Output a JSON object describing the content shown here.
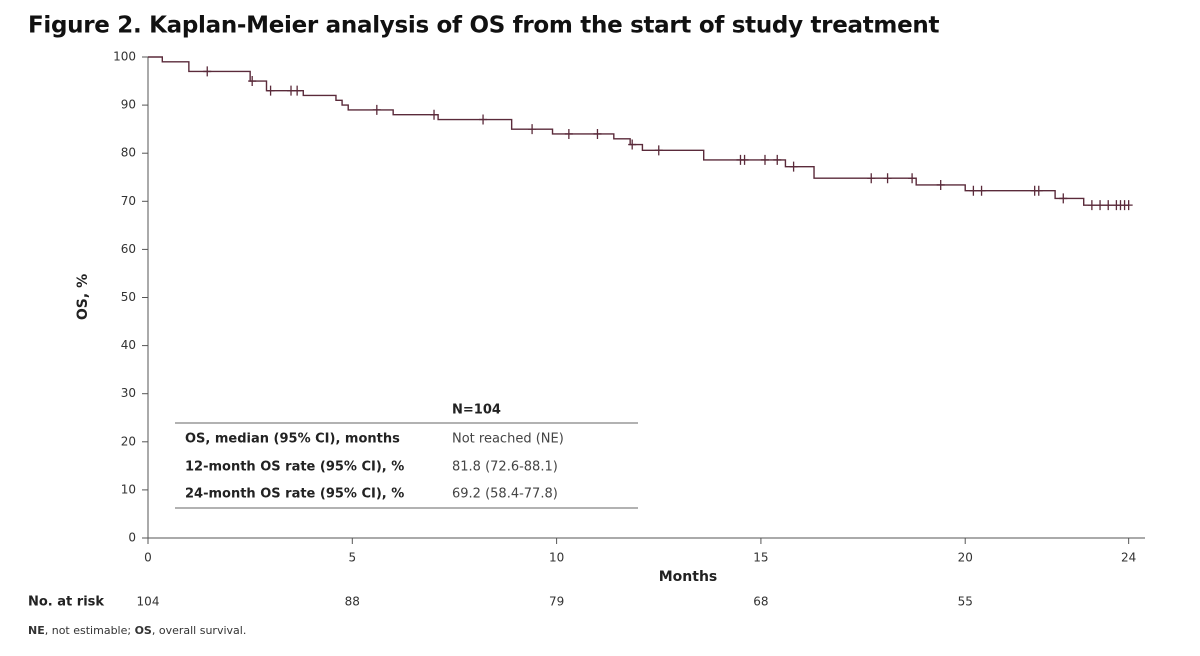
{
  "chart_data": {
    "type": "step",
    "title": "Figure 2. Kaplan-Meier analysis of OS from the start of study treatment",
    "x_label": "Months",
    "y_label": "OS, %",
    "xlim": [
      0,
      24.4
    ],
    "ylim": [
      0,
      100
    ],
    "xticks": [
      0,
      5,
      10,
      15,
      20,
      24
    ],
    "yticks": [
      0,
      10,
      20,
      30,
      40,
      50,
      60,
      70,
      80,
      90,
      100
    ],
    "color": "#5a2a3a",
    "series": [
      {
        "x": [
          0,
          0.35,
          1.0,
          2.5,
          2.9,
          3.8,
          4.6,
          4.75,
          4.9,
          6.0,
          7.1,
          8.9,
          9.9,
          11.4,
          11.8,
          12.1,
          13.6,
          15.6,
          16.3,
          18.8,
          20.0,
          22.2,
          22.9,
          24.0
        ],
        "values": [
          100,
          99,
          97,
          95,
          93,
          92,
          91,
          90,
          89,
          88,
          87,
          85,
          84,
          83,
          81.8,
          80.6,
          78.6,
          77.2,
          74.8,
          73.4,
          72.2,
          70.6,
          69.2,
          69.2
        ]
      }
    ],
    "censored": {
      "x": [
        1.45,
        2.55,
        3.0,
        3.5,
        3.65,
        5.6,
        7.0,
        8.2,
        9.4,
        10.3,
        11.0,
        11.85,
        12.5,
        14.5,
        14.6,
        15.1,
        15.4,
        15.8,
        17.7,
        18.1,
        18.7,
        19.4,
        20.2,
        20.4,
        21.7,
        21.8,
        22.4,
        23.1,
        23.3,
        23.5,
        23.7,
        23.8,
        23.9,
        24.0
      ],
      "values": [
        97,
        95,
        93,
        93,
        93,
        89,
        88,
        87,
        85,
        84,
        84,
        81.8,
        80.6,
        78.6,
        78.6,
        78.6,
        78.6,
        77.2,
        74.8,
        74.8,
        74.8,
        73.4,
        72.2,
        72.2,
        72.2,
        72.2,
        70.6,
        69.2,
        69.2,
        69.2,
        69.2,
        69.2,
        69.2,
        69.2
      ]
    },
    "summary_table": {
      "header": "N=104",
      "rows": [
        [
          "OS, median (95% CI), months",
          "Not reached (NE)"
        ],
        [
          "12-month OS rate (95% CI), %",
          "81.8 (72.6-88.1)"
        ],
        [
          "24-month OS rate (95% CI), %",
          "69.2 (58.4-77.8)"
        ]
      ]
    },
    "risk_table": {
      "label": "No. at risk",
      "x": [
        0,
        5,
        10,
        15,
        20
      ],
      "values": [
        104,
        88,
        79,
        68,
        55
      ]
    },
    "footnote": [
      "NE",
      ", not estimable; ",
      "OS",
      ", overall survival."
    ]
  }
}
